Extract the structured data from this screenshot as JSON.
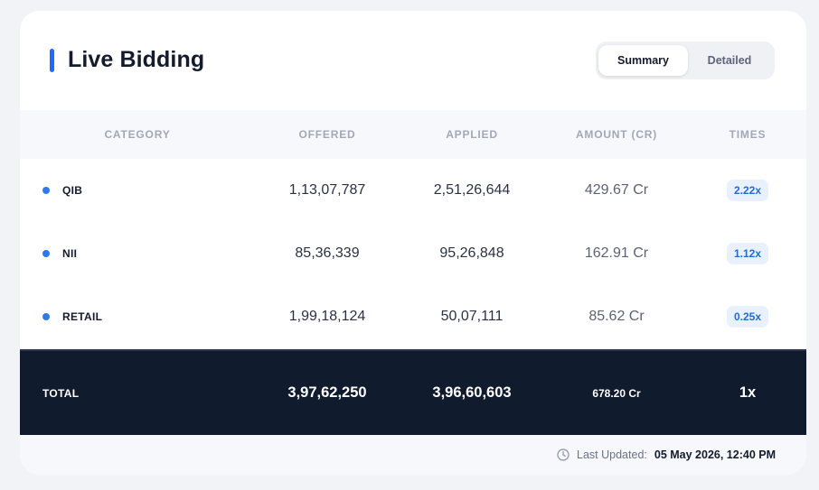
{
  "header": {
    "title": "Live Bidding",
    "toggle": {
      "summary": "Summary",
      "detailed": "Detailed",
      "selected": "Summary"
    }
  },
  "table": {
    "columns": [
      "CATEGORY",
      "OFFERED",
      "APPLIED",
      "AMOUNT (CR)",
      "TIMES"
    ],
    "rows": [
      {
        "category": "QIB",
        "offered": "1,13,07,787",
        "applied": "2,51,26,644",
        "amount": "429.67 Cr",
        "times": "2.22x"
      },
      {
        "category": "NII",
        "offered": "85,36,339",
        "applied": "95,26,848",
        "amount": "162.91 Cr",
        "times": "1.12x"
      },
      {
        "category": "RETAIL",
        "offered": "1,99,18,124",
        "applied": "50,07,111",
        "amount": "85.62 Cr",
        "times": "0.25x"
      }
    ],
    "total": {
      "label": "TOTAL",
      "offered": "3,97,62,250",
      "applied": "3,96,60,603",
      "amount": "678.20 Cr",
      "times": "1x"
    }
  },
  "footer": {
    "label": "Last Updated:",
    "value": "05 May 2026, 12:40 PM",
    "icon": "clock-icon"
  },
  "colors": {
    "accent": "#1f6bff",
    "dot": "#2f7ae8",
    "total_bg": "#111b2e",
    "badge_bg": "#eaf1fe",
    "badge_text": "#1f6bd8"
  }
}
